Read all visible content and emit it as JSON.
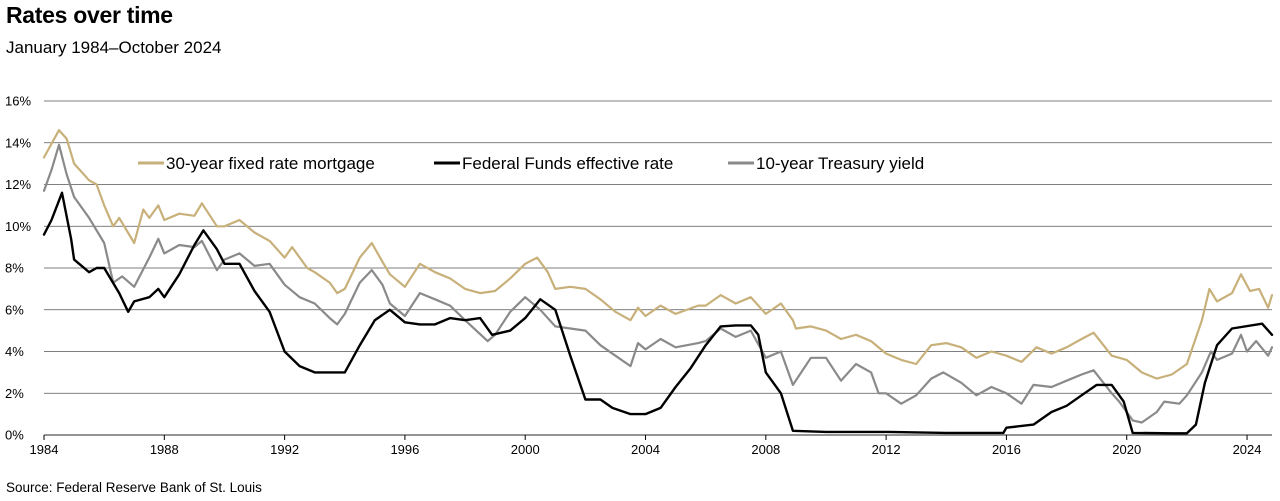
{
  "title": "Rates over time",
  "subtitle": "January 1984–October 2024",
  "source": "Source: Federal Reserve Bank of St. Louis",
  "colors": {
    "mortgage": "#c8b07a",
    "fedfunds": "#000000",
    "treasury": "#8a8a8a",
    "grid": "#555555"
  },
  "chart_data": {
    "type": "line",
    "title": "Rates over time",
    "subtitle": "January 1984–October 2024",
    "xlabel": "",
    "ylabel": "",
    "xlim": [
      1984.0,
      2024.83
    ],
    "ylim": [
      0,
      16
    ],
    "y_ticks": [
      0,
      2,
      4,
      6,
      8,
      10,
      12,
      14,
      16
    ],
    "y_tick_labels": [
      "0%",
      "2%",
      "4%",
      "6%",
      "8%",
      "10%",
      "12%",
      "14%",
      "16%"
    ],
    "x_ticks": [
      1984,
      1988,
      1992,
      1996,
      2000,
      2004,
      2008,
      2012,
      2016,
      2020,
      2024
    ],
    "x_tick_labels": [
      "1984",
      "1988",
      "1992",
      "1996",
      "2000",
      "2004",
      "2008",
      "2012",
      "2016",
      "2020",
      "2024"
    ],
    "grid": "horizontal",
    "legend_position": "top-left",
    "series": [
      {
        "name": "30-year fixed rate mortgage",
        "color": "#c8b07a",
        "points": [
          [
            1984.0,
            13.3
          ],
          [
            1984.5,
            14.6
          ],
          [
            1984.75,
            14.2
          ],
          [
            1985.0,
            13.0
          ],
          [
            1985.5,
            12.2
          ],
          [
            1985.75,
            12.0
          ],
          [
            1986.0,
            11.0
          ],
          [
            1986.3,
            10.0
          ],
          [
            1986.5,
            10.4
          ],
          [
            1987.0,
            9.2
          ],
          [
            1987.3,
            10.8
          ],
          [
            1987.5,
            10.4
          ],
          [
            1987.8,
            11.0
          ],
          [
            1988.0,
            10.3
          ],
          [
            1988.5,
            10.6
          ],
          [
            1989.0,
            10.5
          ],
          [
            1989.25,
            11.1
          ],
          [
            1989.75,
            10.0
          ],
          [
            1990.0,
            10.0
          ],
          [
            1990.5,
            10.3
          ],
          [
            1991.0,
            9.7
          ],
          [
            1991.5,
            9.3
          ],
          [
            1992.0,
            8.5
          ],
          [
            1992.25,
            9.0
          ],
          [
            1992.75,
            8.0
          ],
          [
            1993.0,
            7.8
          ],
          [
            1993.5,
            7.3
          ],
          [
            1993.75,
            6.8
          ],
          [
            1994.0,
            7.0
          ],
          [
            1994.5,
            8.5
          ],
          [
            1994.9,
            9.2
          ],
          [
            1995.25,
            8.3
          ],
          [
            1995.5,
            7.7
          ],
          [
            1996.0,
            7.1
          ],
          [
            1996.5,
            8.2
          ],
          [
            1997.0,
            7.8
          ],
          [
            1997.5,
            7.5
          ],
          [
            1998.0,
            7.0
          ],
          [
            1998.5,
            6.8
          ],
          [
            1999.0,
            6.9
          ],
          [
            1999.5,
            7.5
          ],
          [
            2000.0,
            8.2
          ],
          [
            2000.4,
            8.5
          ],
          [
            2000.75,
            7.8
          ],
          [
            2001.0,
            7.0
          ],
          [
            2001.5,
            7.1
          ],
          [
            2002.0,
            7.0
          ],
          [
            2002.5,
            6.5
          ],
          [
            2003.0,
            5.9
          ],
          [
            2003.5,
            5.5
          ],
          [
            2003.75,
            6.1
          ],
          [
            2004.0,
            5.7
          ],
          [
            2004.5,
            6.2
          ],
          [
            2005.0,
            5.8
          ],
          [
            2005.75,
            6.2
          ],
          [
            2006.0,
            6.2
          ],
          [
            2006.5,
            6.7
          ],
          [
            2007.0,
            6.3
          ],
          [
            2007.5,
            6.6
          ],
          [
            2008.0,
            5.8
          ],
          [
            2008.5,
            6.3
          ],
          [
            2008.9,
            5.5
          ],
          [
            2009.0,
            5.1
          ],
          [
            2009.5,
            5.2
          ],
          [
            2010.0,
            5.0
          ],
          [
            2010.5,
            4.6
          ],
          [
            2011.0,
            4.8
          ],
          [
            2011.5,
            4.5
          ],
          [
            2012.0,
            3.9
          ],
          [
            2012.5,
            3.6
          ],
          [
            2013.0,
            3.4
          ],
          [
            2013.5,
            4.3
          ],
          [
            2014.0,
            4.4
          ],
          [
            2014.5,
            4.2
          ],
          [
            2015.0,
            3.7
          ],
          [
            2015.5,
            4.0
          ],
          [
            2016.0,
            3.8
          ],
          [
            2016.5,
            3.5
          ],
          [
            2017.0,
            4.2
          ],
          [
            2017.5,
            3.9
          ],
          [
            2018.0,
            4.2
          ],
          [
            2018.5,
            4.6
          ],
          [
            2018.9,
            4.9
          ],
          [
            2019.5,
            3.8
          ],
          [
            2020.0,
            3.6
          ],
          [
            2020.5,
            3.0
          ],
          [
            2021.0,
            2.7
          ],
          [
            2021.5,
            2.9
          ],
          [
            2022.0,
            3.4
          ],
          [
            2022.5,
            5.5
          ],
          [
            2022.75,
            7.0
          ],
          [
            2023.0,
            6.4
          ],
          [
            2023.5,
            6.8
          ],
          [
            2023.8,
            7.7
          ],
          [
            2024.1,
            6.9
          ],
          [
            2024.4,
            7.0
          ],
          [
            2024.7,
            6.1
          ],
          [
            2024.83,
            6.7
          ]
        ]
      },
      {
        "name": "Federal Funds effective rate",
        "color": "#000000",
        "points": [
          [
            1984.0,
            9.6
          ],
          [
            1984.25,
            10.3
          ],
          [
            1984.6,
            11.6
          ],
          [
            1984.9,
            9.4
          ],
          [
            1985.0,
            8.4
          ],
          [
            1985.5,
            7.8
          ],
          [
            1985.75,
            8.0
          ],
          [
            1986.0,
            8.0
          ],
          [
            1986.5,
            6.8
          ],
          [
            1986.8,
            5.9
          ],
          [
            1987.0,
            6.4
          ],
          [
            1987.5,
            6.6
          ],
          [
            1987.8,
            7.0
          ],
          [
            1988.0,
            6.6
          ],
          [
            1988.5,
            7.7
          ],
          [
            1989.0,
            9.1
          ],
          [
            1989.3,
            9.8
          ],
          [
            1989.75,
            8.9
          ],
          [
            1990.0,
            8.2
          ],
          [
            1990.5,
            8.2
          ],
          [
            1991.0,
            6.9
          ],
          [
            1991.5,
            5.9
          ],
          [
            1992.0,
            4.0
          ],
          [
            1992.5,
            3.3
          ],
          [
            1993.0,
            3.0
          ],
          [
            1993.5,
            3.0
          ],
          [
            1994.0,
            3.0
          ],
          [
            1994.5,
            4.3
          ],
          [
            1995.0,
            5.5
          ],
          [
            1995.5,
            6.0
          ],
          [
            1996.0,
            5.4
          ],
          [
            1996.5,
            5.3
          ],
          [
            1997.0,
            5.3
          ],
          [
            1997.5,
            5.6
          ],
          [
            1998.0,
            5.5
          ],
          [
            1998.5,
            5.6
          ],
          [
            1998.9,
            4.8
          ],
          [
            1999.5,
            5.0
          ],
          [
            2000.0,
            5.6
          ],
          [
            2000.5,
            6.5
          ],
          [
            2001.0,
            6.0
          ],
          [
            2001.5,
            3.8
          ],
          [
            2002.0,
            1.7
          ],
          [
            2002.5,
            1.7
          ],
          [
            2002.9,
            1.3
          ],
          [
            2003.5,
            1.0
          ],
          [
            2004.0,
            1.0
          ],
          [
            2004.5,
            1.3
          ],
          [
            2005.0,
            2.3
          ],
          [
            2005.5,
            3.2
          ],
          [
            2006.0,
            4.3
          ],
          [
            2006.5,
            5.2
          ],
          [
            2007.0,
            5.25
          ],
          [
            2007.5,
            5.25
          ],
          [
            2007.75,
            4.8
          ],
          [
            2008.0,
            3.0
          ],
          [
            2008.5,
            2.0
          ],
          [
            2008.9,
            0.2
          ],
          [
            2010.0,
            0.15
          ],
          [
            2012.0,
            0.15
          ],
          [
            2014.0,
            0.1
          ],
          [
            2015.9,
            0.1
          ],
          [
            2016.0,
            0.35
          ],
          [
            2016.9,
            0.5
          ],
          [
            2017.5,
            1.1
          ],
          [
            2018.0,
            1.4
          ],
          [
            2018.5,
            1.9
          ],
          [
            2019.0,
            2.4
          ],
          [
            2019.5,
            2.4
          ],
          [
            2019.9,
            1.6
          ],
          [
            2020.2,
            0.1
          ],
          [
            2021.5,
            0.08
          ],
          [
            2022.0,
            0.08
          ],
          [
            2022.3,
            0.5
          ],
          [
            2022.6,
            2.5
          ],
          [
            2023.0,
            4.3
          ],
          [
            2023.5,
            5.1
          ],
          [
            2024.5,
            5.33
          ],
          [
            2024.83,
            4.8
          ]
        ]
      },
      {
        "name": "10-year Treasury yield",
        "color": "#8a8a8a",
        "points": [
          [
            1984.0,
            11.7
          ],
          [
            1984.25,
            12.7
          ],
          [
            1984.5,
            13.9
          ],
          [
            1984.75,
            12.5
          ],
          [
            1985.0,
            11.4
          ],
          [
            1985.5,
            10.4
          ],
          [
            1986.0,
            9.2
          ],
          [
            1986.3,
            7.3
          ],
          [
            1986.6,
            7.6
          ],
          [
            1987.0,
            7.1
          ],
          [
            1987.5,
            8.5
          ],
          [
            1987.8,
            9.4
          ],
          [
            1988.0,
            8.7
          ],
          [
            1988.5,
            9.1
          ],
          [
            1989.0,
            9.0
          ],
          [
            1989.25,
            9.3
          ],
          [
            1989.75,
            7.9
          ],
          [
            1990.0,
            8.4
          ],
          [
            1990.5,
            8.7
          ],
          [
            1991.0,
            8.1
          ],
          [
            1991.5,
            8.2
          ],
          [
            1992.0,
            7.2
          ],
          [
            1992.5,
            6.6
          ],
          [
            1993.0,
            6.3
          ],
          [
            1993.5,
            5.6
          ],
          [
            1993.75,
            5.3
          ],
          [
            1994.0,
            5.8
          ],
          [
            1994.5,
            7.3
          ],
          [
            1994.9,
            7.9
          ],
          [
            1995.25,
            7.2
          ],
          [
            1995.5,
            6.3
          ],
          [
            1996.0,
            5.7
          ],
          [
            1996.5,
            6.8
          ],
          [
            1997.0,
            6.5
          ],
          [
            1997.5,
            6.2
          ],
          [
            1998.0,
            5.5
          ],
          [
            1998.75,
            4.5
          ],
          [
            1999.0,
            4.8
          ],
          [
            1999.5,
            5.9
          ],
          [
            2000.0,
            6.6
          ],
          [
            2000.5,
            6.0
          ],
          [
            2001.0,
            5.2
          ],
          [
            2001.5,
            5.1
          ],
          [
            2002.0,
            5.0
          ],
          [
            2002.5,
            4.3
          ],
          [
            2003.0,
            3.8
          ],
          [
            2003.5,
            3.3
          ],
          [
            2003.75,
            4.4
          ],
          [
            2004.0,
            4.1
          ],
          [
            2004.5,
            4.6
          ],
          [
            2005.0,
            4.2
          ],
          [
            2005.75,
            4.4
          ],
          [
            2006.0,
            4.5
          ],
          [
            2006.5,
            5.1
          ],
          [
            2007.0,
            4.7
          ],
          [
            2007.5,
            5.0
          ],
          [
            2008.0,
            3.7
          ],
          [
            2008.5,
            4.0
          ],
          [
            2008.9,
            2.4
          ],
          [
            2009.5,
            3.7
          ],
          [
            2010.0,
            3.7
          ],
          [
            2010.5,
            2.6
          ],
          [
            2011.0,
            3.4
          ],
          [
            2011.5,
            3.0
          ],
          [
            2011.75,
            2.0
          ],
          [
            2012.0,
            2.0
          ],
          [
            2012.5,
            1.5
          ],
          [
            2013.0,
            1.9
          ],
          [
            2013.5,
            2.7
          ],
          [
            2013.9,
            3.0
          ],
          [
            2014.5,
            2.5
          ],
          [
            2015.0,
            1.9
          ],
          [
            2015.5,
            2.3
          ],
          [
            2016.0,
            2.0
          ],
          [
            2016.5,
            1.5
          ],
          [
            2016.9,
            2.4
          ],
          [
            2017.5,
            2.3
          ],
          [
            2018.0,
            2.6
          ],
          [
            2018.5,
            2.9
          ],
          [
            2018.9,
            3.1
          ],
          [
            2019.5,
            2.0
          ],
          [
            2019.75,
            1.6
          ],
          [
            2020.2,
            0.7
          ],
          [
            2020.5,
            0.6
          ],
          [
            2021.0,
            1.1
          ],
          [
            2021.25,
            1.6
          ],
          [
            2021.75,
            1.5
          ],
          [
            2022.0,
            1.9
          ],
          [
            2022.5,
            3.0
          ],
          [
            2022.8,
            4.0
          ],
          [
            2023.0,
            3.6
          ],
          [
            2023.5,
            3.9
          ],
          [
            2023.8,
            4.8
          ],
          [
            2024.0,
            4.0
          ],
          [
            2024.3,
            4.5
          ],
          [
            2024.7,
            3.8
          ],
          [
            2024.83,
            4.2
          ]
        ]
      }
    ]
  }
}
